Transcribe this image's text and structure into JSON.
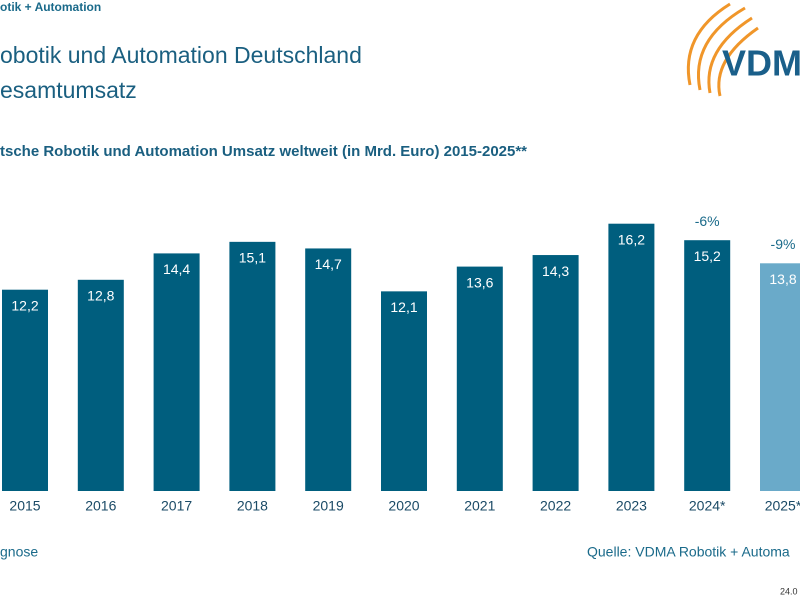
{
  "header": {
    "brand": "otik + Automation",
    "title_lines": [
      "obotik und Automation Deutschland",
      "esamtumsatz"
    ],
    "logo": "VDM"
  },
  "chart_data": {
    "type": "bar",
    "title": "tsche Robotik und Automation Umsatz weltweit (in Mrd. Euro) 2015-2025**",
    "categories": [
      "2015",
      "2016",
      "2017",
      "2018",
      "2019",
      "2020",
      "2021",
      "2022",
      "2023",
      "2024*",
      "2025*"
    ],
    "values": [
      12.2,
      12.8,
      14.4,
      15.1,
      14.7,
      12.1,
      13.6,
      14.3,
      16.2,
      15.2,
      13.8
    ],
    "value_labels": [
      "12,2",
      "12,8",
      "14,4",
      "15,1",
      "14,7",
      "12,1",
      "13,6",
      "14,3",
      "16,2",
      "15,2",
      "13,8"
    ],
    "change_labels": [
      null,
      null,
      null,
      null,
      null,
      null,
      null,
      null,
      null,
      "-6%",
      "-9%"
    ],
    "colors": [
      "#005e7e",
      "#005e7e",
      "#005e7e",
      "#005e7e",
      "#005e7e",
      "#005e7e",
      "#005e7e",
      "#005e7e",
      "#005e7e",
      "#005e7e",
      "#6aaac9"
    ]
  },
  "footer": {
    "note": "gnose",
    "source": "Quelle: VDMA Robotik + Automa",
    "date": "24.0"
  }
}
